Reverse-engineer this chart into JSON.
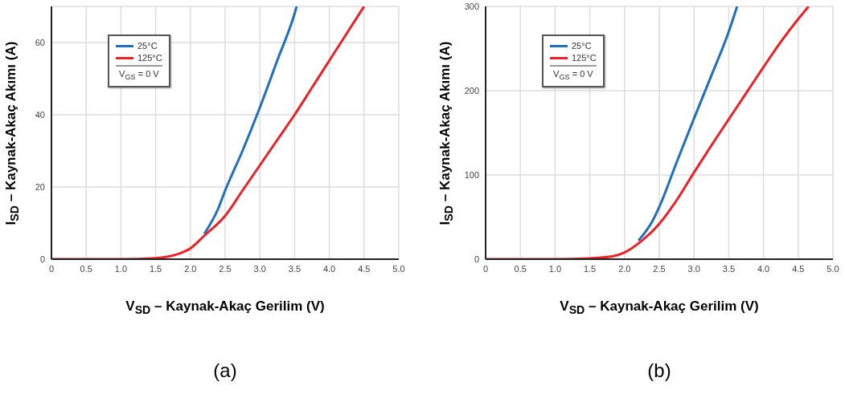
{
  "chart_data": [
    {
      "type": "line",
      "xlabel": "V$_{SD}$ – Kaynak-Akaç Gerilim (V)",
      "ylabel": "I$_{SD}$ – Kaynak-Akaç Akımı (A)",
      "legend_title": "V$_{GS}$ = 0 V",
      "annotations": [
        "(a)"
      ],
      "xlim": [
        0,
        5
      ],
      "xticks": [
        {
          "value": 0,
          "label": "0"
        },
        {
          "value": 0.5,
          "label": "0.5"
        },
        {
          "value": 1,
          "label": "1.0"
        },
        {
          "value": 1.5,
          "label": "1.5"
        },
        {
          "value": 2,
          "label": "2.0"
        },
        {
          "value": 2.5,
          "label": "2.5"
        },
        {
          "value": 3,
          "label": "3.0"
        },
        {
          "value": 3.5,
          "label": "3.5"
        },
        {
          "value": 4,
          "label": "4.0"
        },
        {
          "value": 4.5,
          "label": "4.5"
        },
        {
          "value": 5,
          "label": "5.0"
        }
      ],
      "ylim": [
        0,
        70
      ],
      "yticks": [
        0,
        20,
        40,
        60
      ],
      "grid": true,
      "legend": "top left",
      "marker": "none",
      "line_style": "solid",
      "series": [
        {
          "name": "25°C",
          "color": "#1f6fbf",
          "x": [
            2.2,
            2.4,
            2.5,
            2.75,
            3,
            3.25,
            3.5,
            3.53
          ],
          "values": [
            7,
            14,
            19,
            30,
            42,
            55,
            68,
            70
          ]
        },
        {
          "name": "125°C",
          "color": "#ee2026",
          "x": [
            0,
            1,
            1.5,
            1.8,
            2,
            2.2,
            2.5,
            2.75,
            3,
            3.25,
            3.5,
            3.75,
            4,
            4.25,
            4.5
          ],
          "values": [
            0,
            0,
            0.3,
            1.3,
            3,
            6.5,
            12,
            19,
            26,
            33,
            40,
            47.5,
            55,
            62.5,
            70
          ]
        }
      ]
    },
    {
      "type": "line",
      "xlabel": "V$_{SD}$ – Kaynak-Akaç Gerilim (V)",
      "ylabel": "I$_{SD}$ – Kaynak-Akaç Akımı (A)",
      "legend_title": "V$_{GS}$ = 0 V",
      "annotations": [
        "(b)"
      ],
      "xlim": [
        0,
        5
      ],
      "xticks": [
        {
          "value": 0,
          "label": "0"
        },
        {
          "value": 0.5,
          "label": "0.5"
        },
        {
          "value": 1,
          "label": "1.0"
        },
        {
          "value": 1.5,
          "label": "1.5"
        },
        {
          "value": 2,
          "label": "2.0"
        },
        {
          "value": 2.5,
          "label": "2.5"
        },
        {
          "value": 3,
          "label": "3.0"
        },
        {
          "value": 3.5,
          "label": "3.5"
        },
        {
          "value": 4,
          "label": "4.0"
        },
        {
          "value": 4.5,
          "label": "4.5"
        },
        {
          "value": 5,
          "label": "5.0"
        }
      ],
      "ylim": [
        0,
        300
      ],
      "yticks": [
        0,
        100,
        200,
        300
      ],
      "grid": true,
      "legend": "top left",
      "marker": "none",
      "line_style": "solid",
      "series": [
        {
          "name": "25°C",
          "color": "#1f6fbf",
          "x": [
            2.2,
            2.4,
            2.5,
            2.75,
            3,
            3.25,
            3.5,
            3.62
          ],
          "values": [
            22,
            45,
            62,
            115,
            167,
            218,
            270,
            300
          ]
        },
        {
          "name": "125°C",
          "color": "#ee2026",
          "x": [
            0,
            1,
            1.5,
            1.8,
            2,
            2.25,
            2.5,
            2.75,
            3,
            3.25,
            3.5,
            3.75,
            4,
            4.25,
            4.5,
            4.65
          ],
          "values": [
            0,
            0,
            1,
            3,
            8,
            22,
            42,
            70,
            103,
            135,
            166,
            197,
            228,
            258,
            285,
            300
          ]
        }
      ]
    }
  ]
}
